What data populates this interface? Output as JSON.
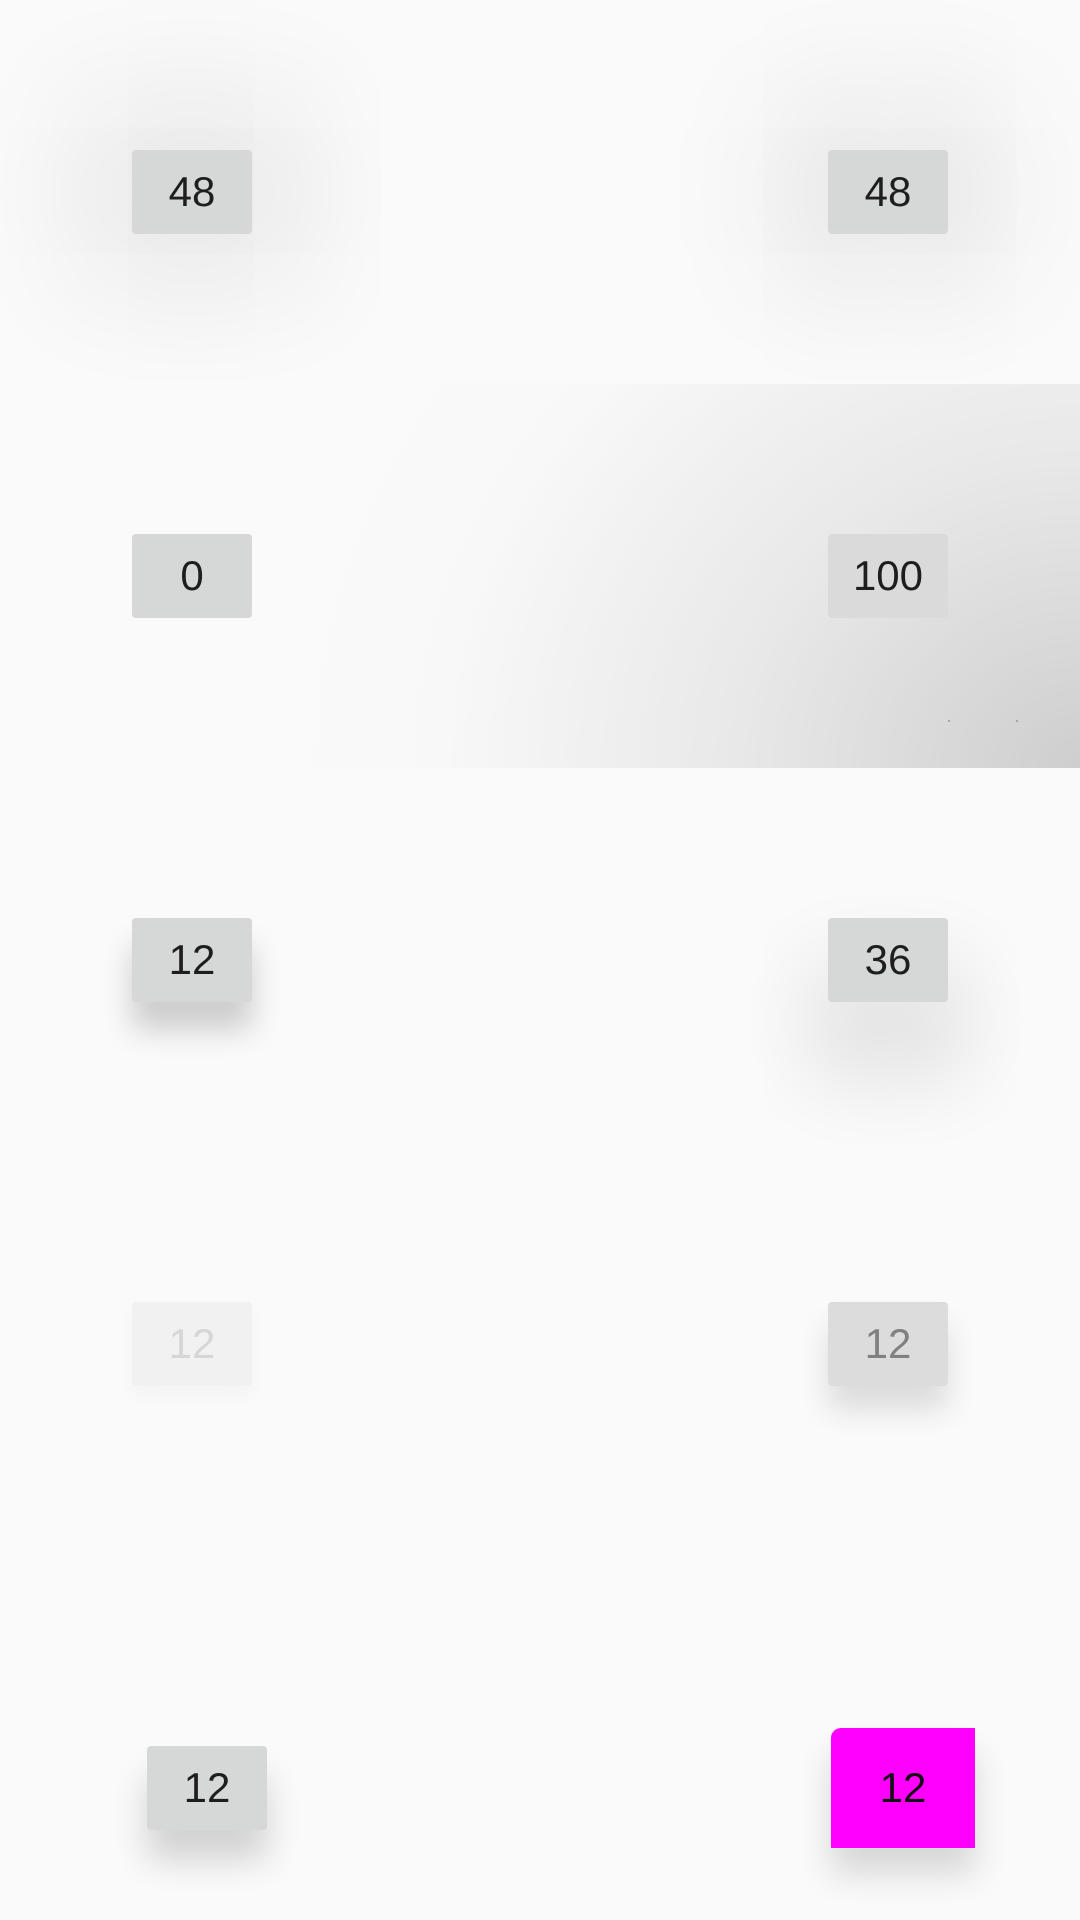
{
  "rows": [
    {
      "left_label": "48",
      "right_label": "48"
    },
    {
      "left_label": "0",
      "right_label": "100"
    },
    {
      "left_label": "12",
      "right_label": "36"
    },
    {
      "left_label": "12",
      "right_label": "12"
    },
    {
      "left_label": "12",
      "right_label": "12"
    }
  ],
  "colors": {
    "background": "#fafafa",
    "button": "#d6d7d7",
    "accent_button": "#ff00ff"
  }
}
